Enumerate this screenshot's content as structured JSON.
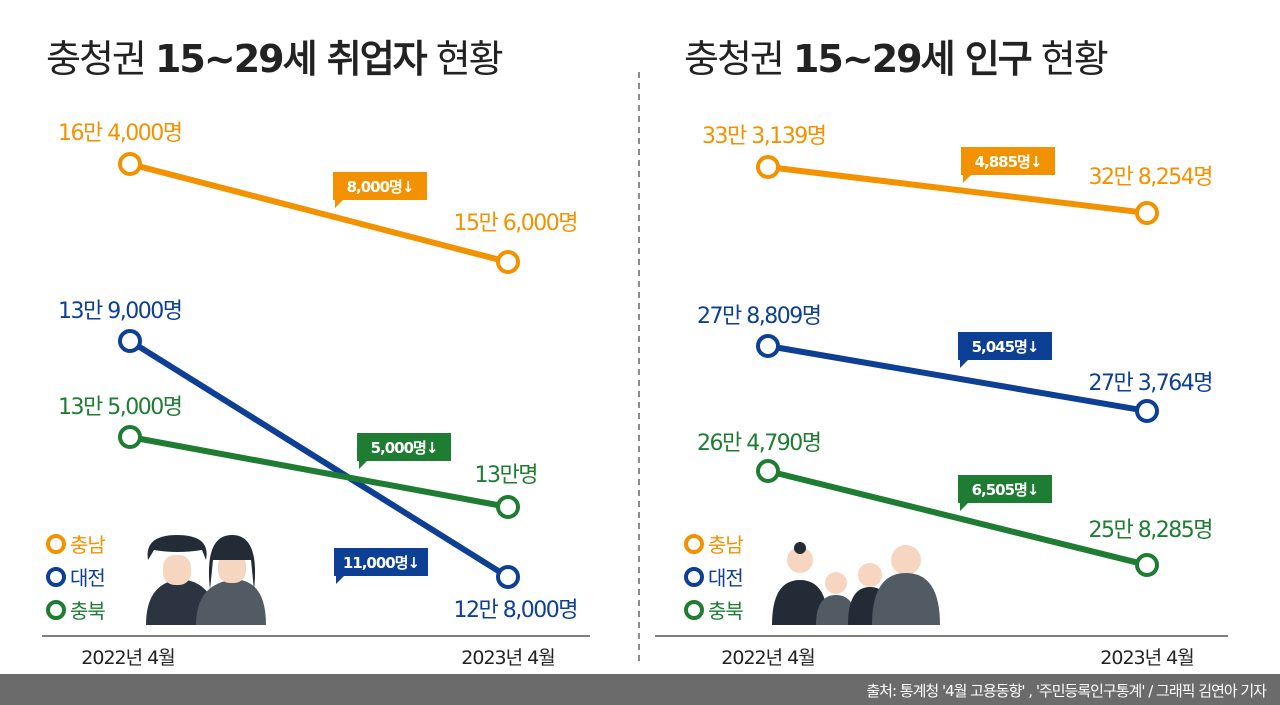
{
  "footer": "출처: 통계청 '4월 고용동향' , '주민등록인구통계' / 그래픽 김연아 기자",
  "colors": {
    "충남": "#f39200",
    "대전": "#0d3f94",
    "충북": "#1e7d32"
  },
  "chart_data": [
    {
      "type": "line",
      "title_pre": "충청권 ",
      "title_bold": "15~29세 취업자",
      "title_post": " 현황",
      "categories": [
        "2022년 4월",
        "2023년 4월"
      ],
      "legend": [
        "충남",
        "대전",
        "충북"
      ],
      "series": [
        {
          "name": "충남",
          "values": [
            164000,
            156000
          ],
          "labels": [
            "16만 4,000명",
            "15만 6,000명"
          ],
          "change": "8,000명↓"
        },
        {
          "name": "대전",
          "values": [
            139000,
            128000
          ],
          "labels": [
            "13만 9,000명",
            "12만 8,000명"
          ],
          "change": "11,000명↓"
        },
        {
          "name": "충북",
          "values": [
            135000,
            130000
          ],
          "labels": [
            "13만 5,000명",
            "13만명"
          ],
          "change": "5,000명↓"
        }
      ]
    },
    {
      "type": "line",
      "title_pre": "충청권 ",
      "title_bold": "15~29세 인구",
      "title_post": " 현황",
      "categories": [
        "2022년 4월",
        "2023년 4월"
      ],
      "legend": [
        "충남",
        "대전",
        "충북"
      ],
      "series": [
        {
          "name": "충남",
          "values": [
            333139,
            328254
          ],
          "labels": [
            "33만 3,139명",
            "32만 8,254명"
          ],
          "change": "4,885명↓"
        },
        {
          "name": "대전",
          "values": [
            278809,
            273764
          ],
          "labels": [
            "27만 8,809명",
            "27만 3,764명"
          ],
          "change": "5,045명↓"
        },
        {
          "name": "충북",
          "values": [
            264790,
            258285
          ],
          "labels": [
            "26만 4,790명",
            "25만 8,285명"
          ],
          "change": "6,505명↓"
        }
      ]
    }
  ]
}
